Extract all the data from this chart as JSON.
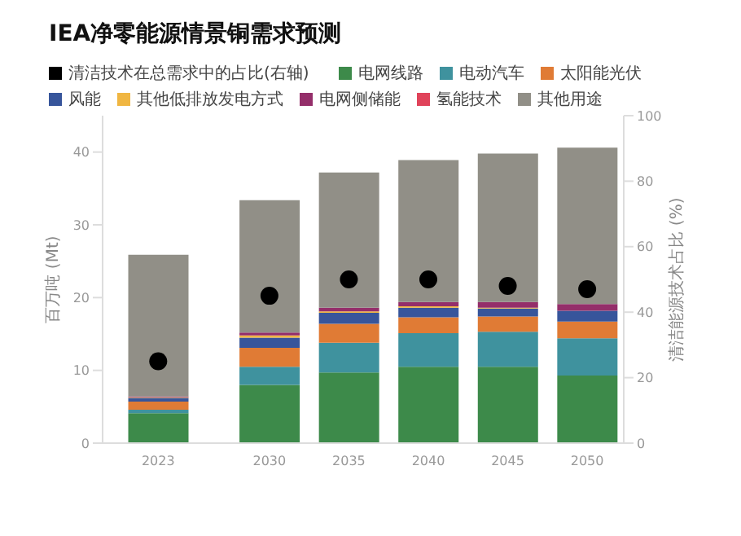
{
  "chart_data": {
    "type": "bar",
    "title": "IEA净零能源情景铜需求预测",
    "stacked": true,
    "legend": "top left",
    "x": [
      2023,
      2030,
      2035,
      2040,
      2045,
      2050
    ],
    "xlim": [
      2019.5,
      2052.3
    ],
    "xticks": [
      2023,
      2030,
      2035,
      2040,
      2045,
      2050
    ],
    "ylabel": "百万吨 (Mt)",
    "ylim": [
      0,
      45
    ],
    "yticks": [
      0,
      10,
      20,
      30,
      40
    ],
    "y2label": "清洁能源技术占比 (%)",
    "y2lim": [
      0,
      100
    ],
    "y2ticks": [
      0,
      20,
      40,
      60,
      80,
      100
    ],
    "grid": false,
    "series": [
      {
        "name": "清洁技术在总需求中的占比(右轴)",
        "type": "scatter",
        "axis": "y2",
        "marker": "circle",
        "color": "#000000",
        "values": [
          25,
          45,
          50,
          50,
          48,
          47
        ]
      },
      {
        "name": "电网线路",
        "color": "#3d8a4a",
        "values": [
          4.1,
          8.0,
          9.7,
          10.5,
          10.5,
          9.3
        ]
      },
      {
        "name": "电动汽车",
        "color": "#3f929e",
        "values": [
          0.5,
          2.5,
          4.1,
          4.6,
          4.8,
          5.1
        ]
      },
      {
        "name": "太阳能光伏",
        "color": "#e07b35",
        "values": [
          1.1,
          2.6,
          2.6,
          2.2,
          2.1,
          2.3
        ]
      },
      {
        "name": "风能",
        "color": "#37559b",
        "values": [
          0.5,
          1.4,
          1.5,
          1.3,
          1.1,
          1.5
        ]
      },
      {
        "name": "其他低排放发电方式",
        "color": "#f0b642",
        "values": [
          0.1,
          0.3,
          0.2,
          0.2,
          0.1,
          null
        ]
      },
      {
        "name": "电网侧储能",
        "color": "#942e6a",
        "values": [
          0.1,
          0.4,
          0.5,
          0.6,
          0.8,
          0.9
        ]
      },
      {
        "name": "氢能技术",
        "color": "#e0435a",
        "values": [
          null,
          null,
          null,
          null,
          null,
          null
        ]
      },
      {
        "name": "其他用途",
        "color": "#918f87",
        "values": [
          19.5,
          18.2,
          18.6,
          19.5,
          20.4,
          21.5
        ]
      }
    ]
  }
}
